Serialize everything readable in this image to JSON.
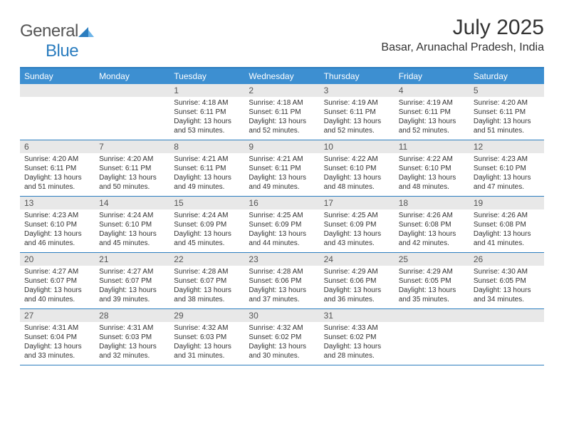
{
  "brand": {
    "word1": "General",
    "word2": "Blue"
  },
  "title": "July 2025",
  "location": "Basar, Arunachal Pradesh, India",
  "colors": {
    "header_bar": "#3d8fd1",
    "rule": "#2b7dbf",
    "daynum_bg": "#e8e8e8",
    "text": "#333333"
  },
  "dow": [
    "Sunday",
    "Monday",
    "Tuesday",
    "Wednesday",
    "Thursday",
    "Friday",
    "Saturday"
  ],
  "weeks": [
    [
      null,
      null,
      {
        "d": "1",
        "sr": "4:18 AM",
        "ss": "6:11 PM",
        "dl": "13 hours and 53 minutes."
      },
      {
        "d": "2",
        "sr": "4:18 AM",
        "ss": "6:11 PM",
        "dl": "13 hours and 52 minutes."
      },
      {
        "d": "3",
        "sr": "4:19 AM",
        "ss": "6:11 PM",
        "dl": "13 hours and 52 minutes."
      },
      {
        "d": "4",
        "sr": "4:19 AM",
        "ss": "6:11 PM",
        "dl": "13 hours and 52 minutes."
      },
      {
        "d": "5",
        "sr": "4:20 AM",
        "ss": "6:11 PM",
        "dl": "13 hours and 51 minutes."
      }
    ],
    [
      {
        "d": "6",
        "sr": "4:20 AM",
        "ss": "6:11 PM",
        "dl": "13 hours and 51 minutes."
      },
      {
        "d": "7",
        "sr": "4:20 AM",
        "ss": "6:11 PM",
        "dl": "13 hours and 50 minutes."
      },
      {
        "d": "8",
        "sr": "4:21 AM",
        "ss": "6:11 PM",
        "dl": "13 hours and 49 minutes."
      },
      {
        "d": "9",
        "sr": "4:21 AM",
        "ss": "6:11 PM",
        "dl": "13 hours and 49 minutes."
      },
      {
        "d": "10",
        "sr": "4:22 AM",
        "ss": "6:10 PM",
        "dl": "13 hours and 48 minutes."
      },
      {
        "d": "11",
        "sr": "4:22 AM",
        "ss": "6:10 PM",
        "dl": "13 hours and 48 minutes."
      },
      {
        "d": "12",
        "sr": "4:23 AM",
        "ss": "6:10 PM",
        "dl": "13 hours and 47 minutes."
      }
    ],
    [
      {
        "d": "13",
        "sr": "4:23 AM",
        "ss": "6:10 PM",
        "dl": "13 hours and 46 minutes."
      },
      {
        "d": "14",
        "sr": "4:24 AM",
        "ss": "6:10 PM",
        "dl": "13 hours and 45 minutes."
      },
      {
        "d": "15",
        "sr": "4:24 AM",
        "ss": "6:09 PM",
        "dl": "13 hours and 45 minutes."
      },
      {
        "d": "16",
        "sr": "4:25 AM",
        "ss": "6:09 PM",
        "dl": "13 hours and 44 minutes."
      },
      {
        "d": "17",
        "sr": "4:25 AM",
        "ss": "6:09 PM",
        "dl": "13 hours and 43 minutes."
      },
      {
        "d": "18",
        "sr": "4:26 AM",
        "ss": "6:08 PM",
        "dl": "13 hours and 42 minutes."
      },
      {
        "d": "19",
        "sr": "4:26 AM",
        "ss": "6:08 PM",
        "dl": "13 hours and 41 minutes."
      }
    ],
    [
      {
        "d": "20",
        "sr": "4:27 AM",
        "ss": "6:07 PM",
        "dl": "13 hours and 40 minutes."
      },
      {
        "d": "21",
        "sr": "4:27 AM",
        "ss": "6:07 PM",
        "dl": "13 hours and 39 minutes."
      },
      {
        "d": "22",
        "sr": "4:28 AM",
        "ss": "6:07 PM",
        "dl": "13 hours and 38 minutes."
      },
      {
        "d": "23",
        "sr": "4:28 AM",
        "ss": "6:06 PM",
        "dl": "13 hours and 37 minutes."
      },
      {
        "d": "24",
        "sr": "4:29 AM",
        "ss": "6:06 PM",
        "dl": "13 hours and 36 minutes."
      },
      {
        "d": "25",
        "sr": "4:29 AM",
        "ss": "6:05 PM",
        "dl": "13 hours and 35 minutes."
      },
      {
        "d": "26",
        "sr": "4:30 AM",
        "ss": "6:05 PM",
        "dl": "13 hours and 34 minutes."
      }
    ],
    [
      {
        "d": "27",
        "sr": "4:31 AM",
        "ss": "6:04 PM",
        "dl": "13 hours and 33 minutes."
      },
      {
        "d": "28",
        "sr": "4:31 AM",
        "ss": "6:03 PM",
        "dl": "13 hours and 32 minutes."
      },
      {
        "d": "29",
        "sr": "4:32 AM",
        "ss": "6:03 PM",
        "dl": "13 hours and 31 minutes."
      },
      {
        "d": "30",
        "sr": "4:32 AM",
        "ss": "6:02 PM",
        "dl": "13 hours and 30 minutes."
      },
      {
        "d": "31",
        "sr": "4:33 AM",
        "ss": "6:02 PM",
        "dl": "13 hours and 28 minutes."
      },
      null,
      null
    ]
  ],
  "labels": {
    "sunrise": "Sunrise: ",
    "sunset": "Sunset: ",
    "daylight": "Daylight: "
  }
}
